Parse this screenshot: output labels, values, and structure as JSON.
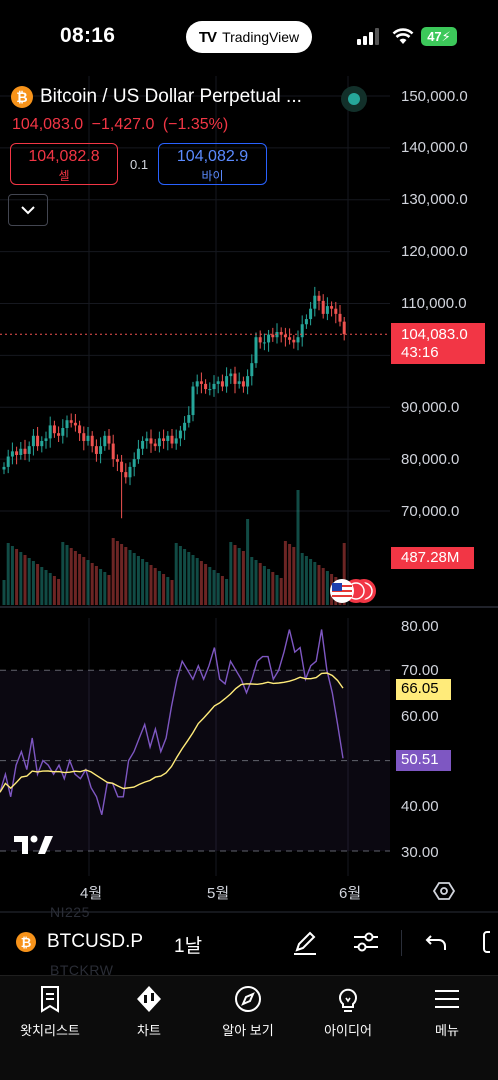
{
  "status_bar": {
    "time": "08:16",
    "app_pill": "TradingView",
    "battery": "47"
  },
  "symbol": {
    "title": "Bitcoin / US Dollar Perpetual ...",
    "coin_glyph": "₿",
    "last": "104,083.0",
    "change": "−1,427.0",
    "change_pct": "(−1.35%)",
    "sell_price": "104,082.8",
    "sell_label": "셀",
    "buy_price": "104,082.9",
    "buy_label": "바이",
    "spread": "0.1"
  },
  "price_axis": [
    "150,000.0",
    "140,000.0",
    "130,000.0",
    "120,000.0",
    "110,000.0",
    "90,000.0",
    "80,000.0",
    "70,000.0"
  ],
  "last_price_tag": {
    "price": "104,083.0",
    "countdown": "43:16"
  },
  "volume_tag": "487.28M",
  "rsi_axis": [
    "80.00",
    "70.00",
    "60.00",
    "40.00",
    "30.00"
  ],
  "rsi_ma_tag": "66.05",
  "rsi_tag": "50.51",
  "time_axis": [
    "4월",
    "5월",
    "6월"
  ],
  "faded_symbols": [
    "NI225",
    "BTCKRW"
  ],
  "toolbar": {
    "symbol": "BTCUSD.P",
    "interval": "1날"
  },
  "nav": [
    {
      "label": "왓치리스트",
      "icon": "watchlist-icon"
    },
    {
      "label": "차트",
      "icon": "chart-icon"
    },
    {
      "label": "알아 보기",
      "icon": "compass-icon"
    },
    {
      "label": "아이디어",
      "icon": "lightbulb-icon"
    },
    {
      "label": "메뉴",
      "icon": "menu-icon"
    }
  ],
  "colors": {
    "up": "#26a69a",
    "down": "#ef5350",
    "rsi": "#7e57c2",
    "rsi_ma": "#ffeb7a",
    "accent_blue": "#2962ff"
  },
  "chart_data": {
    "type": "candlestick",
    "symbol": "BTCUSD.P",
    "interval": "1D",
    "last_price": 104083.0,
    "price_range": [
      60000,
      152000
    ],
    "closes": [
      78500,
      80500,
      81500,
      80800,
      82000,
      81000,
      82500,
      84500,
      82500,
      83500,
      84000,
      86500,
      85000,
      84500,
      86000,
      87500,
      87000,
      86500,
      85000,
      83500,
      84500,
      82500,
      81000,
      82500,
      84500,
      83000,
      80000,
      79500,
      77500,
      76500,
      78500,
      80000,
      82000,
      83500,
      84000,
      83000,
      82500,
      84000,
      83500,
      84500,
      83000,
      84000,
      85500,
      87000,
      88500,
      94000,
      95000,
      94500,
      93500,
      93500,
      94500,
      95000,
      94000,
      96000,
      96500,
      94500,
      95000,
      94000,
      96000,
      98500,
      103500,
      102500,
      102500,
      104000,
      103500,
      104500,
      104000,
      103500,
      103000,
      102500,
      103500,
      106000,
      107000,
      109000,
      111500,
      110500,
      108000,
      109500,
      109000,
      108000,
      106500,
      104083
    ],
    "volume_tag": "487.28M",
    "rsi": {
      "values": [
        43,
        47,
        42,
        49,
        52,
        48,
        55,
        47,
        50,
        49,
        47,
        49,
        46,
        50,
        47,
        46,
        48,
        44,
        42,
        38,
        45,
        45,
        42,
        42,
        50,
        52,
        55,
        58,
        53,
        57,
        52,
        55,
        62,
        68,
        72,
        70,
        68,
        71,
        68,
        71,
        75,
        68,
        67,
        72,
        70,
        68,
        65,
        68,
        72,
        73,
        73,
        68,
        70,
        74,
        79,
        74,
        75,
        68,
        71,
        72,
        79,
        70,
        65,
        58,
        50.51
      ],
      "ma_last": 66.05,
      "last": 50.51,
      "range": [
        27,
        82
      ],
      "band": [
        30,
        70
      ]
    },
    "time_labels": [
      "4월",
      "5월",
      "6월"
    ]
  }
}
